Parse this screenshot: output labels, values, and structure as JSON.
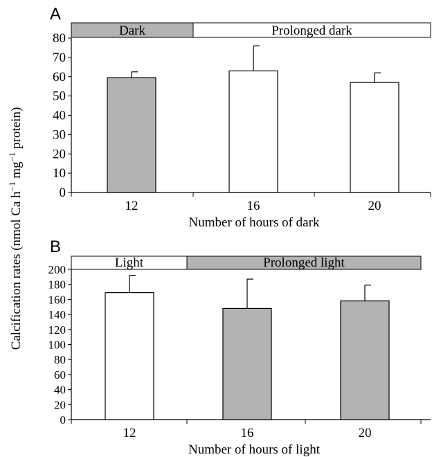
{
  "colors": {
    "gray_fill": "#b3b3b3",
    "white_fill": "#ffffff",
    "stroke": "#000000"
  },
  "y_label": {
    "prefix": "Calcification rates (nmol Ca h",
    "sup1": "−1",
    "mid": " mg",
    "sup2": "−1",
    "suffix": " protein)"
  },
  "chart_data": [
    {
      "type": "bar",
      "panel": "A",
      "categories": [
        "12",
        "16",
        "20"
      ],
      "values": [
        59.5,
        63,
        57
      ],
      "errors": [
        3,
        13,
        5
      ],
      "bar_fills": [
        "gray",
        "white",
        "white"
      ],
      "xlabel": "Number of hours of dark",
      "ylim": [
        0,
        80
      ],
      "yticks": [
        "0",
        "10",
        "20",
        "30",
        "40",
        "50",
        "60",
        "70",
        "80"
      ],
      "banner": [
        {
          "label": "Dark",
          "fill": "gray"
        },
        {
          "label": "Prolonged dark",
          "fill": "white"
        }
      ]
    },
    {
      "type": "bar",
      "panel": "B",
      "categories": [
        "12",
        "16",
        "20"
      ],
      "values": [
        169,
        148,
        158
      ],
      "errors": [
        23,
        39,
        21
      ],
      "bar_fills": [
        "white",
        "gray",
        "gray"
      ],
      "xlabel": "Number of hours of light",
      "ylim": [
        0,
        200
      ],
      "yticks": [
        "0",
        "20",
        "40",
        "60",
        "80",
        "100",
        "120",
        "140",
        "160",
        "180",
        "200"
      ],
      "banner": [
        {
          "label": "Light",
          "fill": "white"
        },
        {
          "label": "Prolonged light",
          "fill": "gray"
        }
      ]
    }
  ]
}
